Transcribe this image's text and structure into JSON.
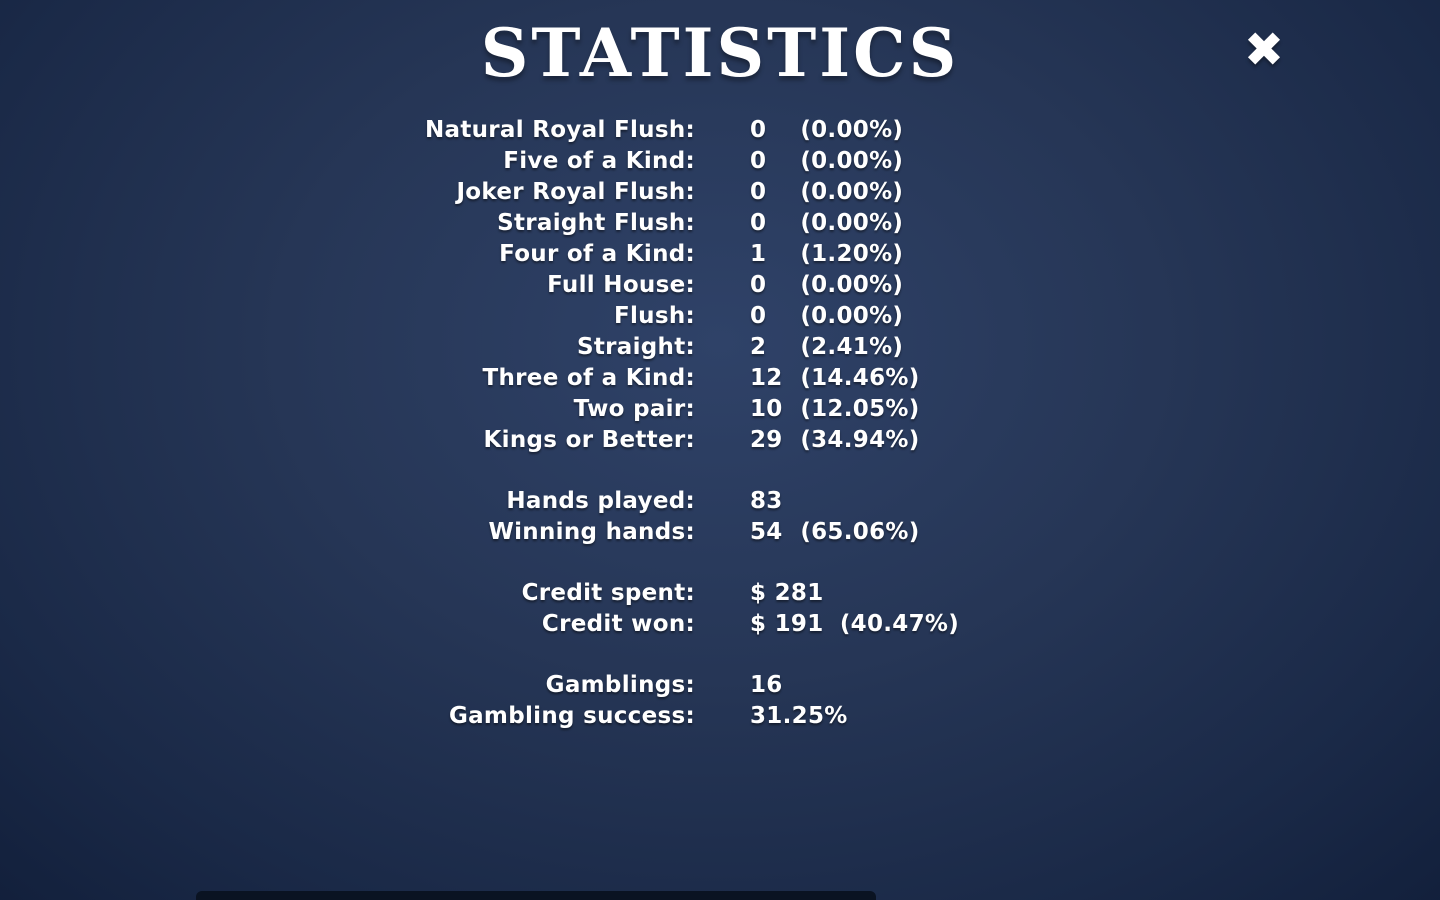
{
  "title": "STATISTICS",
  "close_icon": "✖",
  "colors": {
    "background_center": "#2f4268",
    "background_edge": "#0c172e",
    "text": "#ffffff"
  },
  "hand_stats": [
    {
      "label": "Natural Royal Flush:",
      "value": "0",
      "percent": "(0.00%)"
    },
    {
      "label": "Five of a Kind:",
      "value": "0",
      "percent": "(0.00%)"
    },
    {
      "label": "Joker Royal Flush:",
      "value": "0",
      "percent": "(0.00%)"
    },
    {
      "label": "Straight Flush:",
      "value": "0",
      "percent": "(0.00%)"
    },
    {
      "label": "Four of a Kind:",
      "value": "1",
      "percent": "(1.20%)"
    },
    {
      "label": "Full House:",
      "value": "0",
      "percent": "(0.00%)"
    },
    {
      "label": "Flush:",
      "value": "0",
      "percent": "(0.00%)"
    },
    {
      "label": "Straight:",
      "value": "2",
      "percent": "(2.41%)"
    },
    {
      "label": "Three of a Kind:",
      "value": "12",
      "percent": "(14.46%)"
    },
    {
      "label": "Two pair:",
      "value": "10",
      "percent": "(12.05%)"
    },
    {
      "label": "Kings or Better:",
      "value": "29",
      "percent": "(34.94%)"
    }
  ],
  "play_stats": [
    {
      "label": "Hands played:",
      "value": "83",
      "percent": ""
    },
    {
      "label": "Winning hands:",
      "value": "54",
      "percent": "(65.06%)"
    }
  ],
  "credit_stats": [
    {
      "label": "Credit spent:",
      "value": "$ 281",
      "percent": ""
    },
    {
      "label": "Credit won:",
      "value": "$ 191",
      "percent": "(40.47%)"
    }
  ],
  "gambling_stats": [
    {
      "label": "Gamblings:",
      "value": "16",
      "percent": ""
    },
    {
      "label": "Gambling success:",
      "value": "31.25%",
      "percent": ""
    }
  ]
}
